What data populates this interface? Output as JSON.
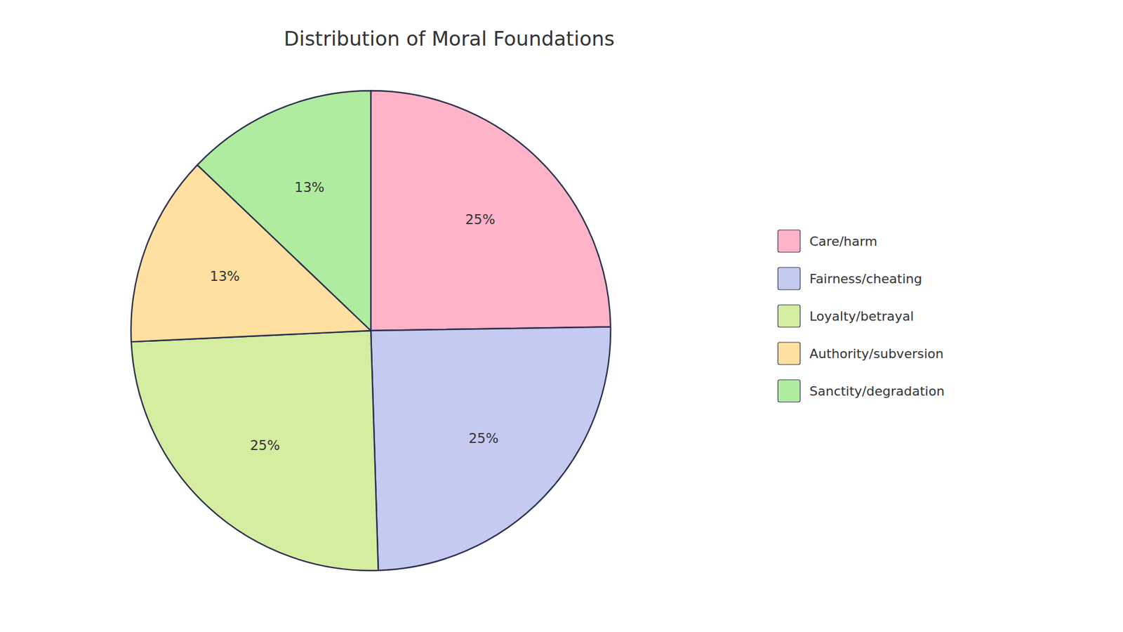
{
  "chart_data": {
    "type": "pie",
    "title": "Distribution of Moral Foundations",
    "categories": [
      "Care/harm",
      "Fairness/cheating",
      "Loyalty/betrayal",
      "Authority/subversion",
      "Sanctity/degradation"
    ],
    "values": [
      25,
      25,
      25,
      13,
      13
    ],
    "value_labels": [
      "25%",
      "25%",
      "25%",
      "13%",
      "13%"
    ],
    "colors": [
      "#FFB3C8",
      "#C5CAF0",
      "#D4EDA0",
      "#FFE0A0",
      "#B0ECA0"
    ],
    "data_labels": true,
    "legend": "right"
  }
}
